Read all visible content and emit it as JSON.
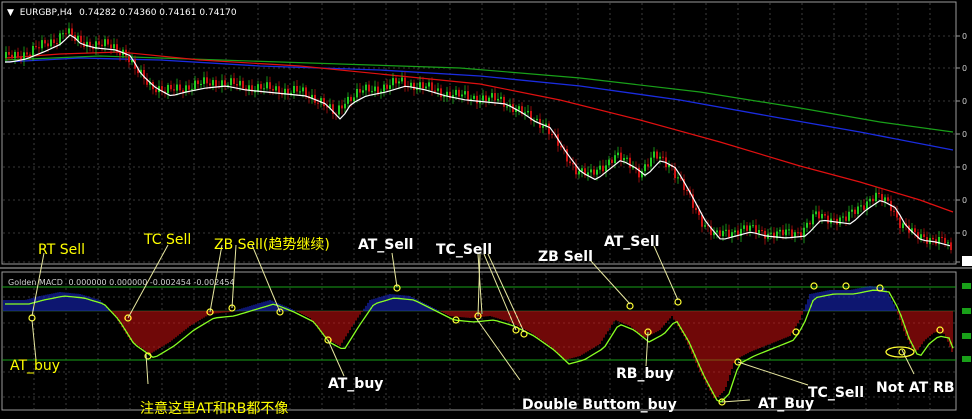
{
  "chart_data": [
    {
      "type": "candlestick",
      "symbol_label": "EURGBP,H4",
      "ohlc_label": "0.74282 0.74360 0.74161 0.74170",
      "grid": true,
      "series_colors": {
        "bull_candle": "#22cc22",
        "bear_candle": "#cc1111",
        "ma_fast": "#ffffff",
        "ma_red": "#e01010",
        "ma_blue": "#1a2ce0",
        "ma_green": "#19a019"
      },
      "axis_ticks_visible": [
        "0",
        "0",
        "0",
        "0",
        "0",
        "0",
        "0",
        "0"
      ]
    },
    {
      "type": "bar",
      "indicator_label": "Golden MACD",
      "indicator_values_label": "0.000000 0.000000 -0.002454 -0.002454",
      "grid": true,
      "series_colors": {
        "positive_hist": "#1a2ce0",
        "negative_hist": "#e01010",
        "signal_line": "#88ff22",
        "level_line": "#19a019",
        "marker": "#ffff33"
      }
    }
  ],
  "annotations": {
    "white": [
      {
        "text": "AT_Sell",
        "anchor": "ann-at-sell-1"
      },
      {
        "text": "TC_Sell",
        "anchor": "ann-tc-sell-top"
      },
      {
        "text": "ZB Sell",
        "anchor": "ann-zb-sell-2"
      },
      {
        "text": "AT_Sell",
        "anchor": "ann-at-sell-2"
      },
      {
        "text": "AT_buy",
        "anchor": "ann-at-buy-2"
      },
      {
        "text": "RB_buy",
        "anchor": "ann-rb-buy"
      },
      {
        "text": "Double Buttom_buy",
        "anchor": "ann-double-bottom"
      },
      {
        "text": "AT_Buy",
        "anchor": "ann-at-buy-3"
      },
      {
        "text": "TC_Sell",
        "anchor": "ann-tc-sell-bottom"
      },
      {
        "text": "Not AT RB",
        "anchor": "ann-not-at-rb"
      }
    ],
    "yellow": [
      {
        "text": "RT Sell",
        "anchor": "ann-rt-sell"
      },
      {
        "text": "TC Sell",
        "anchor": "ann-tc-sell-1"
      },
      {
        "text": "ZB Sell(趋势继续)",
        "anchor": "ann-zb-sell-1"
      },
      {
        "text": "AT_buy",
        "anchor": "ann-at-buy-1"
      },
      {
        "text": "注意这里AT和RB都不像",
        "anchor": "ann-cn-note"
      }
    ]
  }
}
